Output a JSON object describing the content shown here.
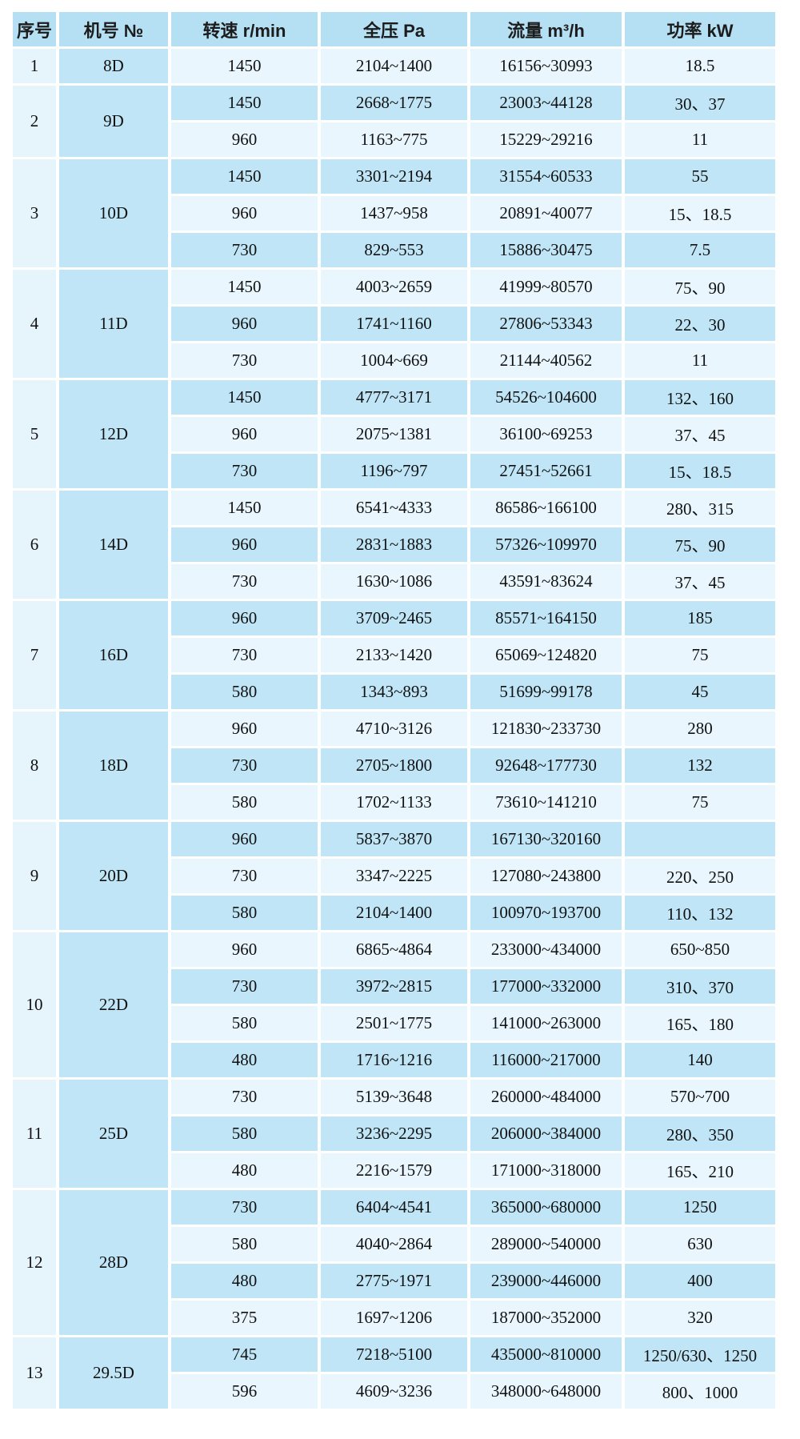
{
  "colors": {
    "header_bg": "#b5dff2",
    "row_light": "#e9f6fd",
    "row_medium": "#bfe5f6",
    "serial_col_bg": "#e6f4fc",
    "model_col_bg": "#bfe5f6",
    "grid_line": "#ffffff",
    "header_text": "#1c1c1c",
    "cell_text": "#111111"
  },
  "table": {
    "headers": [
      "序号",
      "机号 №",
      "转速 r/min",
      "全压 Pa",
      "流量 m³/h",
      "功率 kW"
    ],
    "groups": [
      {
        "serial": "1",
        "model": "8D",
        "rows": [
          {
            "speed": "1450",
            "pressure": "2104~1400",
            "flow": "16156~30993",
            "power": "18.5"
          }
        ]
      },
      {
        "serial": "2",
        "model": "9D",
        "rows": [
          {
            "speed": "1450",
            "pressure": "2668~1775",
            "flow": "23003~44128",
            "power": "30、37"
          },
          {
            "speed": "960",
            "pressure": "1163~775",
            "flow": "15229~29216",
            "power": "11"
          }
        ]
      },
      {
        "serial": "3",
        "model": "10D",
        "rows": [
          {
            "speed": "1450",
            "pressure": "3301~2194",
            "flow": "31554~60533",
            "power": "55"
          },
          {
            "speed": "960",
            "pressure": "1437~958",
            "flow": "20891~40077",
            "power": "15、18.5"
          },
          {
            "speed": "730",
            "pressure": "829~553",
            "flow": "15886~30475",
            "power": "7.5"
          }
        ]
      },
      {
        "serial": "4",
        "model": "11D",
        "rows": [
          {
            "speed": "1450",
            "pressure": "4003~2659",
            "flow": "41999~80570",
            "power": "75、90"
          },
          {
            "speed": "960",
            "pressure": "1741~1160",
            "flow": "27806~53343",
            "power": "22、30"
          },
          {
            "speed": "730",
            "pressure": "1004~669",
            "flow": "21144~40562",
            "power": "11"
          }
        ]
      },
      {
        "serial": "5",
        "model": "12D",
        "rows": [
          {
            "speed": "1450",
            "pressure": "4777~3171",
            "flow": "54526~104600",
            "power": "132、160"
          },
          {
            "speed": "960",
            "pressure": "2075~1381",
            "flow": "36100~69253",
            "power": "37、45"
          },
          {
            "speed": "730",
            "pressure": "1196~797",
            "flow": "27451~52661",
            "power": "15、18.5"
          }
        ]
      },
      {
        "serial": "6",
        "model": "14D",
        "rows": [
          {
            "speed": "1450",
            "pressure": "6541~4333",
            "flow": "86586~166100",
            "power": "280、315"
          },
          {
            "speed": "960",
            "pressure": "2831~1883",
            "flow": "57326~109970",
            "power": "75、90"
          },
          {
            "speed": "730",
            "pressure": "1630~1086",
            "flow": "43591~83624",
            "power": "37、45"
          }
        ]
      },
      {
        "serial": "7",
        "model": "16D",
        "rows": [
          {
            "speed": "960",
            "pressure": "3709~2465",
            "flow": "85571~164150",
            "power": "185"
          },
          {
            "speed": "730",
            "pressure": "2133~1420",
            "flow": "65069~124820",
            "power": "75"
          },
          {
            "speed": "580",
            "pressure": "1343~893",
            "flow": "51699~99178",
            "power": "45"
          }
        ]
      },
      {
        "serial": "8",
        "model": "18D",
        "rows": [
          {
            "speed": "960",
            "pressure": "4710~3126",
            "flow": "121830~233730",
            "power": "280"
          },
          {
            "speed": "730",
            "pressure": "2705~1800",
            "flow": "92648~177730",
            "power": "132"
          },
          {
            "speed": "580",
            "pressure": "1702~1133",
            "flow": "73610~141210",
            "power": "75"
          }
        ]
      },
      {
        "serial": "9",
        "model": "20D",
        "rows": [
          {
            "speed": "960",
            "pressure": "5837~3870",
            "flow": "167130~320160",
            "power": ""
          },
          {
            "speed": "730",
            "pressure": "3347~2225",
            "flow": "127080~243800",
            "power": "220、250"
          },
          {
            "speed": "580",
            "pressure": "2104~1400",
            "flow": "100970~193700",
            "power": "110、132"
          }
        ]
      },
      {
        "serial": "10",
        "model": "22D",
        "rows": [
          {
            "speed": "960",
            "pressure": "6865~4864",
            "flow": "233000~434000",
            "power": "650~850"
          },
          {
            "speed": "730",
            "pressure": "3972~2815",
            "flow": "177000~332000",
            "power": "310、370"
          },
          {
            "speed": "580",
            "pressure": "2501~1775",
            "flow": "141000~263000",
            "power": "165、180"
          },
          {
            "speed": "480",
            "pressure": "1716~1216",
            "flow": "116000~217000",
            "power": "140"
          }
        ]
      },
      {
        "serial": "11",
        "model": "25D",
        "rows": [
          {
            "speed": "730",
            "pressure": "5139~3648",
            "flow": "260000~484000",
            "power": "570~700"
          },
          {
            "speed": "580",
            "pressure": "3236~2295",
            "flow": "206000~384000",
            "power": "280、350"
          },
          {
            "speed": "480",
            "pressure": "2216~1579",
            "flow": "171000~318000",
            "power": "165、210"
          }
        ]
      },
      {
        "serial": "12",
        "model": "28D",
        "rows": [
          {
            "speed": "730",
            "pressure": "6404~4541",
            "flow": "365000~680000",
            "power": "1250"
          },
          {
            "speed": "580",
            "pressure": "4040~2864",
            "flow": "289000~540000",
            "power": "630"
          },
          {
            "speed": "480",
            "pressure": "2775~1971",
            "flow": "239000~446000",
            "power": "400"
          },
          {
            "speed": "375",
            "pressure": "1697~1206",
            "flow": "187000~352000",
            "power": "320"
          }
        ]
      },
      {
        "serial": "13",
        "model": "29.5D",
        "rows": [
          {
            "speed": "745",
            "pressure": "7218~5100",
            "flow": "435000~810000",
            "power": "1250/630、1250"
          },
          {
            "speed": "596",
            "pressure": "4609~3236",
            "flow": "348000~648000",
            "power": "800、1000"
          }
        ]
      }
    ]
  }
}
